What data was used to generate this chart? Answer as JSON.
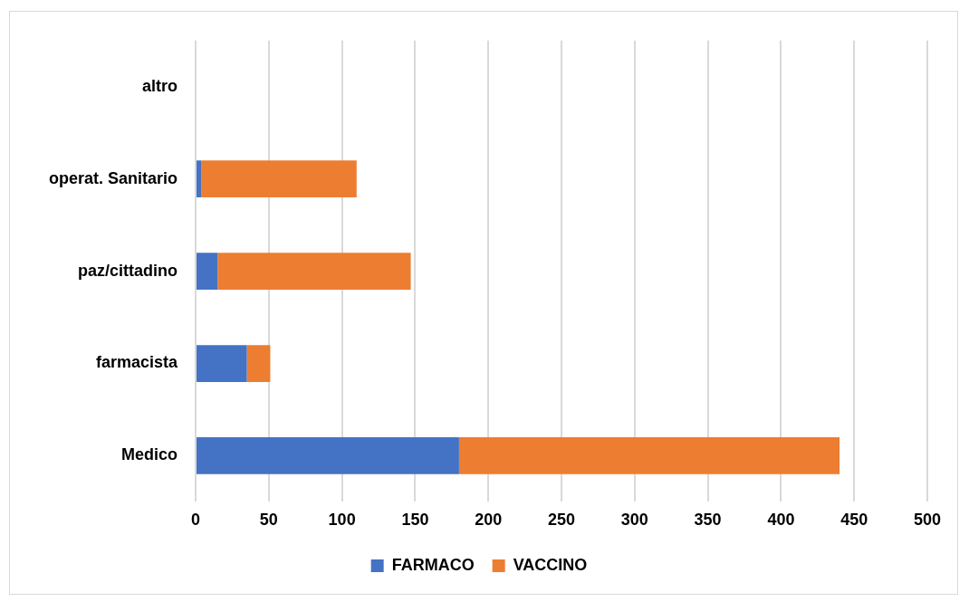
{
  "chart_data": {
    "type": "bar",
    "orientation": "horizontal",
    "stacked": true,
    "categories": [
      "altro",
      "operat. Sanitario",
      "paz/cittadino",
      "farmacista",
      "Medico"
    ],
    "series": [
      {
        "name": "FARMACO",
        "color": "#4472c4",
        "values": [
          0,
          4,
          15,
          35,
          180
        ]
      },
      {
        "name": "VACCINO",
        "color": "#ed7d31",
        "values": [
          0,
          106,
          132,
          16,
          260
        ]
      }
    ],
    "xlim": [
      0,
      500
    ],
    "xticks": [
      0,
      50,
      100,
      150,
      200,
      250,
      300,
      350,
      400,
      450,
      500
    ],
    "grid": "x",
    "legend": "bottom"
  }
}
